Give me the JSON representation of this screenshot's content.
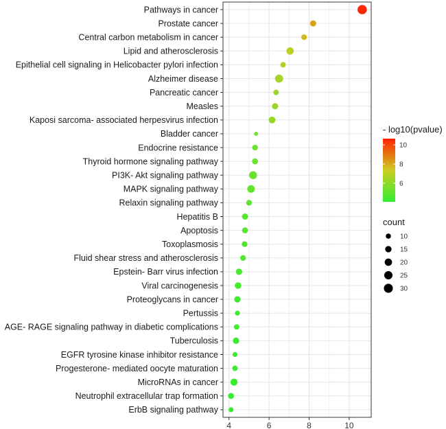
{
  "chart_data": {
    "type": "scatter",
    "title": "",
    "xlabel": "",
    "ylabel": "",
    "xlim": [
      3.7,
      11.1
    ],
    "x_ticks": [
      4,
      6,
      8,
      10
    ],
    "grid": true,
    "terms": [
      {
        "label": "Pathways in cancer",
        "x": 10.65,
        "count": 32,
        "log10p": 10.6
      },
      {
        "label": "Prostate cancer",
        "x": 8.2,
        "count": 14,
        "log10p": 8.2
      },
      {
        "label": "Central carbon metabolism in cancer",
        "x": 7.75,
        "count": 12,
        "log10p": 7.7
      },
      {
        "label": "Lipid and atherosclerosis",
        "x": 7.05,
        "count": 20,
        "log10p": 7.0
      },
      {
        "label": "Epithelial cell signaling in Helicobacter pylori infection",
        "x": 6.7,
        "count": 11,
        "log10p": 6.7
      },
      {
        "label": "Alzheimer disease",
        "x": 6.5,
        "count": 24,
        "log10p": 6.5
      },
      {
        "label": "Pancreatic cancer",
        "x": 6.35,
        "count": 11,
        "log10p": 6.3
      },
      {
        "label": "Measles",
        "x": 6.3,
        "count": 14,
        "log10p": 6.3
      },
      {
        "label": "Kaposi sarcoma- associated herpesvirus infection",
        "x": 6.15,
        "count": 17,
        "log10p": 6.1
      },
      {
        "label": "Bladder cancer",
        "x": 5.35,
        "count": 6,
        "log10p": 5.3
      },
      {
        "label": "Endocrine resistance",
        "x": 5.3,
        "count": 12,
        "log10p": 5.3
      },
      {
        "label": "Thyroid hormone signaling pathway",
        "x": 5.3,
        "count": 13,
        "log10p": 5.3
      },
      {
        "label": "PI3K- Akt signaling pathway",
        "x": 5.2,
        "count": 23,
        "log10p": 5.2
      },
      {
        "label": "MAPK signaling pathway",
        "x": 5.1,
        "count": 21,
        "log10p": 5.1
      },
      {
        "label": "Relaxin signaling pathway",
        "x": 5.0,
        "count": 12,
        "log10p": 5.0
      },
      {
        "label": "Hepatitis B",
        "x": 4.8,
        "count": 14,
        "log10p": 4.8
      },
      {
        "label": "Apoptosis",
        "x": 4.8,
        "count": 13,
        "log10p": 4.8
      },
      {
        "label": "Toxoplasmosis",
        "x": 4.78,
        "count": 12,
        "log10p": 4.7
      },
      {
        "label": "Fluid shear stress and atherosclerosis",
        "x": 4.7,
        "count": 12,
        "log10p": 4.7
      },
      {
        "label": "Epstein- Barr virus infection",
        "x": 4.5,
        "count": 15,
        "log10p": 4.5
      },
      {
        "label": "Viral carcinogenesis",
        "x": 4.45,
        "count": 16,
        "log10p": 4.45
      },
      {
        "label": "Proteoglycans in cancer",
        "x": 4.42,
        "count": 15,
        "log10p": 4.4
      },
      {
        "label": "Pertussis",
        "x": 4.42,
        "count": 9,
        "log10p": 4.4
      },
      {
        "label": "AGE- RAGE signaling pathway in diabetic complications",
        "x": 4.38,
        "count": 11,
        "log10p": 4.35
      },
      {
        "label": "Tuberculosis",
        "x": 4.35,
        "count": 15,
        "log10p": 4.3
      },
      {
        "label": "EGFR tyrosine kinase inhibitor resistance",
        "x": 4.3,
        "count": 9,
        "log10p": 4.3
      },
      {
        "label": "Progesterone- mediated oocyte maturation",
        "x": 4.3,
        "count": 11,
        "log10p": 4.3
      },
      {
        "label": "MicroRNAs in cancer",
        "x": 4.25,
        "count": 19,
        "log10p": 4.25
      },
      {
        "label": "Neutrophil extracellular trap formation",
        "x": 4.1,
        "count": 13,
        "log10p": 4.1
      },
      {
        "label": "ErbB signaling pathway",
        "x": 4.1,
        "count": 9,
        "log10p": 4.1
      }
    ],
    "color_legend": {
      "title": "- log10(pvalue)",
      "min": 4.05,
      "max": 10.65,
      "ticks": [
        6,
        8,
        10
      ],
      "low_color": "#33ee33",
      "mid_color": "#cccc22",
      "high_color": "#ff2200"
    },
    "size_legend": {
      "title": "count",
      "values": [
        10,
        15,
        20,
        25,
        30
      ]
    }
  }
}
